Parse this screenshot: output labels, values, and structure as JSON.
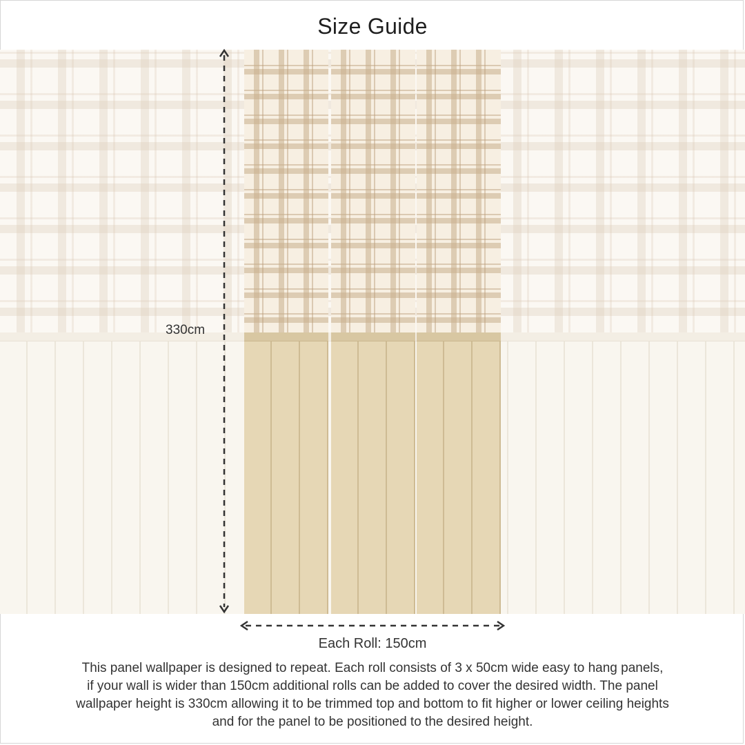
{
  "title": "Size Guide",
  "dimensions": {
    "height_label": "330cm",
    "width_label": "Each Roll: 150cm"
  },
  "description": {
    "lines": [
      "This panel wallpaper is designed to repeat. Each roll consists of 3 x 50cm wide easy to hang panels,",
      "if your wall is wider than 150cm additional rolls can be added to cover the desired width. The panel",
      "wallpaper height is 330cm allowing it to be trimmed top and bottom to fit higher or lower ceiling heights",
      "and for the panel to be positioned to the desired height."
    ]
  },
  "colors": {
    "text": "#333333",
    "panel_plaid": "#f7efe2",
    "panel_boards": "#e6d7b5",
    "wall_faded": "#fbf8f3",
    "arrow": "#333333"
  },
  "icons": {
    "vertical_arrow": "vertical-dimension-arrow-icon",
    "horizontal_arrow": "horizontal-dimension-arrow-icon"
  }
}
